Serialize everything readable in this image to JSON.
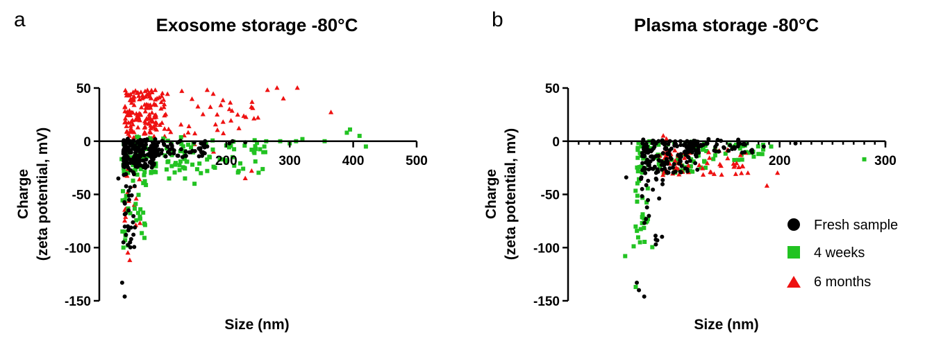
{
  "colors": {
    "fresh": "#000000",
    "four_weeks": "#22c322",
    "six_months": "#ee1111",
    "axis": "#000000"
  },
  "legend": [
    {
      "series": "fresh",
      "label": "Fresh sample",
      "marker": "circle"
    },
    {
      "series": "four_weeks",
      "label": "4 weeks",
      "marker": "square"
    },
    {
      "series": "six_months",
      "label": "6 months",
      "marker": "triangle"
    }
  ],
  "chart_data": [
    {
      "type": "scatter",
      "panel_letter": "a",
      "title": "Exosome storage -80°C",
      "xlabel": "Size (nm)",
      "ylabel_line1": "Charge",
      "ylabel_line2": "(zeta potential, mV)",
      "xlim": [
        0,
        500
      ],
      "ylim": [
        -150,
        50
      ],
      "xticks": [
        200,
        300,
        400,
        500
      ],
      "yticks": [
        50,
        0,
        -50,
        -100,
        -150
      ],
      "x_minor_ticks": false,
      "grid": false,
      "series": [
        {
          "name": "6 months",
          "key": "six_months",
          "marker": "triangle",
          "clusters": [
            {
              "n": 150,
              "x": [
                40,
                105
              ],
              "y": [
                3,
                48
              ]
            },
            {
              "n": 30,
              "x": [
                100,
                245
              ],
              "y": [
                5,
                45
              ]
            },
            {
              "n": 16,
              "x": [
                40,
                70
              ],
              "y": [
                -85,
                -10
              ]
            }
          ],
          "points": [
            [
              48,
              -112
            ],
            [
              45,
              -105
            ],
            [
              55,
              -60
            ],
            [
              150,
              -3
            ],
            [
              180,
              -10
            ],
            [
              240,
              -28
            ],
            [
              230,
              -35
            ],
            [
              280,
              50
            ],
            [
              312,
              50
            ],
            [
              265,
              48
            ],
            [
              290,
              40
            ],
            [
              365,
              27
            ],
            [
              250,
              22
            ],
            [
              205,
              30
            ],
            [
              175,
              32
            ],
            [
              170,
              48
            ],
            [
              195,
              18
            ],
            [
              220,
              12
            ],
            [
              140,
              8
            ],
            [
              130,
              47
            ]
          ]
        },
        {
          "name": "4 weeks",
          "key": "four_weeks",
          "marker": "square",
          "clusters": [
            {
              "n": 70,
              "x": [
                35,
                140
              ],
              "y": [
                -30,
                5
              ]
            },
            {
              "n": 50,
              "x": [
                120,
                265
              ],
              "y": [
                -30,
                1
              ]
            },
            {
              "n": 30,
              "x": [
                35,
                75
              ],
              "y": [
                -95,
                -20
              ]
            }
          ],
          "points": [
            [
              40,
              -85
            ],
            [
              38,
              -100
            ],
            [
              45,
              -98
            ],
            [
              150,
              -40
            ],
            [
              135,
              -35
            ],
            [
              160,
              -30
            ],
            [
              200,
              -20
            ],
            [
              210,
              -15
            ],
            [
              240,
              -8
            ],
            [
              260,
              -5
            ],
            [
              285,
              0
            ],
            [
              300,
              -2
            ],
            [
              310,
              0
            ],
            [
              320,
              2
            ],
            [
              355,
              0
            ],
            [
              390,
              8
            ],
            [
              395,
              11
            ],
            [
              410,
              5
            ],
            [
              420,
              -5
            ],
            [
              180,
              -24
            ],
            [
              170,
              -28
            ],
            [
              110,
              -35
            ]
          ]
        },
        {
          "name": "Fresh sample",
          "key": "fresh",
          "marker": "circle",
          "clusters": [
            {
              "n": 180,
              "x": [
                38,
                90
              ],
              "y": [
                -25,
                3
              ]
            },
            {
              "n": 60,
              "x": [
                85,
                170
              ],
              "y": [
                -15,
                1
              ]
            },
            {
              "n": 30,
              "x": [
                38,
                58
              ],
              "y": [
                -100,
                -25
              ]
            }
          ],
          "points": [
            [
              36,
              -133
            ],
            [
              40,
              -146
            ],
            [
              30,
              -35
            ],
            [
              42,
              -88
            ],
            [
              38,
              -95
            ],
            [
              45,
              -80
            ],
            [
              170,
              -5
            ],
            [
              205,
              -2
            ],
            [
              210,
              0
            ],
            [
              230,
              -1
            ]
          ]
        }
      ]
    },
    {
      "type": "scatter",
      "panel_letter": "b",
      "title": "Plasma storage -80°C",
      "xlabel": "Size (nm)",
      "ylabel_line1": "Charge",
      "ylabel_line2": "(zeta potential, mv)",
      "xlim": [
        0,
        300
      ],
      "ylim": [
        -150,
        50
      ],
      "xticks": [
        200,
        300
      ],
      "yticks": [
        50,
        0,
        -50,
        -100,
        -150
      ],
      "x_minor_ticks": true,
      "grid": false,
      "series": [
        {
          "name": "4 weeks",
          "key": "four_weeks",
          "marker": "square",
          "clusters": [
            {
              "n": 70,
              "x": [
                65,
                130
              ],
              "y": [
                -30,
                0
              ]
            },
            {
              "n": 40,
              "x": [
                110,
                185
              ],
              "y": [
                -18,
                0
              ]
            },
            {
              "n": 25,
              "x": [
                62,
                80
              ],
              "y": [
                -100,
                -30
              ]
            }
          ],
          "points": [
            [
              54,
              -108
            ],
            [
              64,
              -137
            ],
            [
              68,
              -95
            ],
            [
              192,
              -5
            ],
            [
              280,
              -17
            ],
            [
              175,
              -10
            ],
            [
              180,
              -12
            ]
          ]
        },
        {
          "name": "6 months",
          "key": "six_months",
          "marker": "triangle",
          "clusters": [
            {
              "n": 60,
              "x": [
                85,
                170
              ],
              "y": [
                -32,
                -8
              ]
            }
          ],
          "points": [
            [
              90,
              5
            ],
            [
              93,
              2
            ],
            [
              188,
              -42
            ],
            [
              198,
              -30
            ],
            [
              170,
              -30
            ]
          ]
        },
        {
          "name": "Fresh sample",
          "key": "fresh",
          "marker": "circle",
          "clusters": [
            {
              "n": 140,
              "x": [
                70,
                125
              ],
              "y": [
                -30,
                2
              ]
            },
            {
              "n": 60,
              "x": [
                110,
                175
              ],
              "y": [
                -12,
                2
              ]
            },
            {
              "n": 22,
              "x": [
                68,
                90
              ],
              "y": [
                -95,
                -25
              ]
            }
          ],
          "points": [
            [
              65,
              -133
            ],
            [
              67,
              -140
            ],
            [
              72,
              -146
            ],
            [
              55,
              -34
            ],
            [
              83,
              -97
            ],
            [
              215,
              -2
            ],
            [
              185,
              -5
            ]
          ]
        }
      ]
    }
  ]
}
